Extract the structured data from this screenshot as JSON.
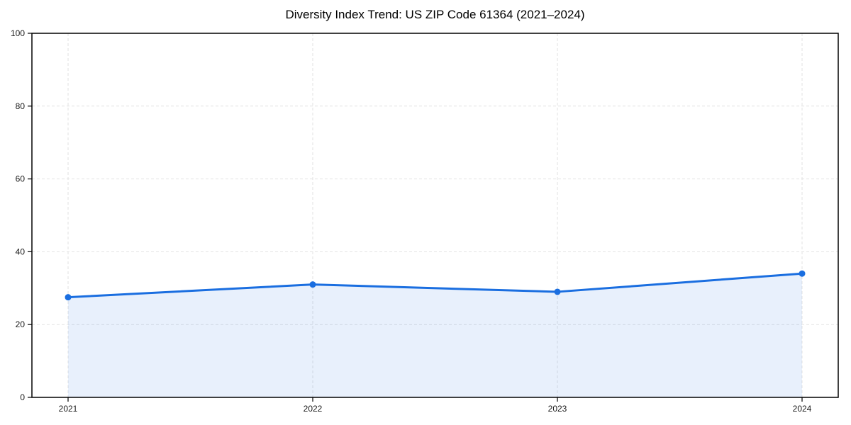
{
  "page": {
    "background": "#ffffff"
  },
  "chart_data": {
    "type": "area",
    "title": "Diversity Index Trend: US ZIP Code 61364 (2021–2024)",
    "categories": [
      "2021",
      "2022",
      "2023",
      "2024"
    ],
    "values": [
      27.5,
      31,
      29,
      34
    ],
    "xlabel": "",
    "ylabel": "",
    "ylim": [
      0,
      100
    ],
    "yticks": [
      0,
      20,
      40,
      60,
      80,
      100
    ],
    "grid": "dashed-both-axes",
    "legend_position": "none",
    "marker_style": "filled-circle",
    "colors": {
      "line": "#1a6ee0",
      "marker": "#1a6ee0",
      "area_fill": "rgba(26,110,224,0.10)",
      "grid": "#e2e2e2",
      "axis": "#000000",
      "tick_label": "#1a1a1a",
      "title": "#000000"
    }
  }
}
